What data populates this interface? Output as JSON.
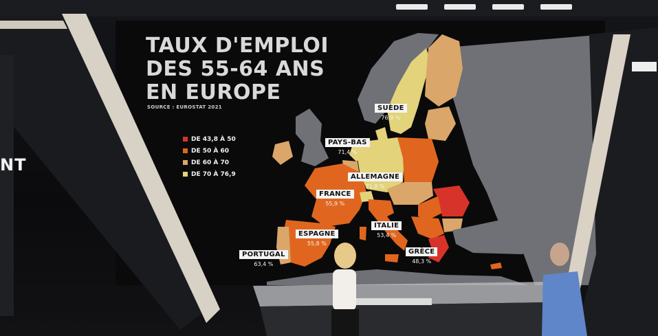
{
  "title": "TAUX D'EMPLOI DES 55-64 ANS EN EUROPE",
  "title_lines": [
    "TAUX D'EMPLOI",
    "DES 55-64 ANS",
    "EN EUROPE"
  ],
  "source": "SOURCE : EUROSTAT 2021",
  "brand_text": "NT",
  "legend": [
    {
      "label": "DE 43,8 À 50",
      "color": "#d8332a"
    },
    {
      "label": "DE 50 À 60",
      "color": "#e0661f"
    },
    {
      "label": "DE 60 À 70",
      "color": "#dba66a"
    },
    {
      "label": "DE 70 À 76,9",
      "color": "#e3d37a"
    }
  ],
  "countries": [
    {
      "name": "SUÈDE",
      "value": "76,9 %"
    },
    {
      "name": "PAYS-BAS",
      "value": "71,4 %"
    },
    {
      "name": "ALLEMAGNE",
      "value": "71,8 %"
    },
    {
      "name": "FRANCE",
      "value": "55,9 %"
    },
    {
      "name": "ESPAGNE",
      "value": "55,8 %"
    },
    {
      "name": "ITALIE",
      "value": "53,4 %"
    },
    {
      "name": "PORTUGAL",
      "value": "63,4 %"
    },
    {
      "name": "GRÈCE",
      "value": "48,3 %"
    }
  ]
}
